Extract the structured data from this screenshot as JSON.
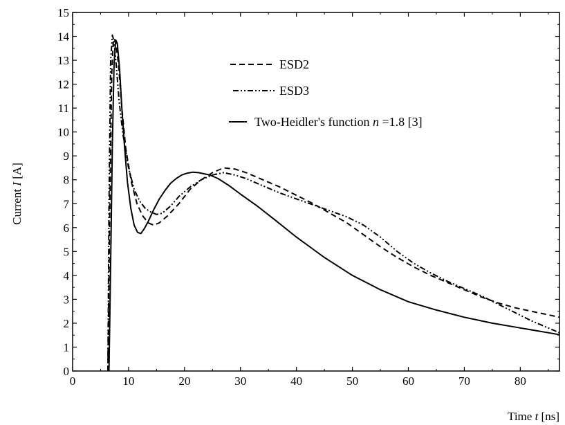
{
  "chart_data": {
    "type": "line",
    "xlabel": {
      "prefix": "Time ",
      "var": "t",
      "suffix": " [ns]"
    },
    "ylabel": {
      "prefix": "Current ",
      "var": "I",
      "suffix": " [A]"
    },
    "xlim": [
      0,
      87
    ],
    "ylim": [
      0,
      15
    ],
    "x_ticks": [
      0,
      10,
      20,
      30,
      40,
      50,
      60,
      70,
      80
    ],
    "y_ticks": [
      0,
      1,
      2,
      3,
      4,
      5,
      6,
      7,
      8,
      9,
      10,
      11,
      12,
      13,
      14,
      15
    ],
    "grid": false,
    "legend_position": "top-right",
    "series": [
      {
        "name": "ESD2",
        "style": "dashed",
        "x": [
          6.3,
          6.6,
          7.0,
          7.3,
          7.7,
          8.2,
          8.8,
          9.5,
          10.5,
          11.5,
          12.5,
          13.5,
          14.5,
          15.5,
          17,
          19,
          21,
          23,
          25,
          27,
          29,
          31,
          34,
          37,
          40,
          43,
          46,
          49,
          52,
          55,
          58,
          61,
          64,
          67,
          70,
          73,
          76,
          79,
          82,
          85,
          87
        ],
        "y": [
          0,
          6.0,
          12.5,
          13.9,
          13.8,
          12.8,
          11.0,
          9.3,
          7.9,
          7.0,
          6.5,
          6.2,
          6.1,
          6.2,
          6.5,
          7.0,
          7.6,
          8.0,
          8.3,
          8.5,
          8.45,
          8.3,
          8.0,
          7.7,
          7.35,
          7.0,
          6.6,
          6.2,
          5.7,
          5.2,
          4.75,
          4.35,
          4.0,
          3.7,
          3.4,
          3.1,
          2.85,
          2.65,
          2.5,
          2.35,
          2.25
        ]
      },
      {
        "name": "ESD3",
        "style": "dash-dot-dot",
        "x": [
          6.3,
          6.5,
          6.8,
          7.1,
          7.4,
          7.8,
          8.3,
          9.0,
          10.0,
          11.0,
          12.0,
          13.0,
          14.0,
          15.0,
          16.0,
          17.5,
          19,
          21,
          23,
          25,
          27,
          29,
          31,
          34,
          37,
          40,
          43,
          46,
          49,
          52,
          55,
          58,
          61,
          64,
          67,
          70,
          73,
          76,
          79,
          82,
          85,
          87
        ],
        "y": [
          0,
          7.0,
          13.0,
          14.05,
          13.8,
          12.8,
          11.3,
          9.9,
          8.5,
          7.6,
          7.1,
          6.8,
          6.65,
          6.55,
          6.6,
          6.9,
          7.3,
          7.7,
          8.0,
          8.2,
          8.3,
          8.2,
          8.05,
          7.75,
          7.45,
          7.2,
          6.95,
          6.7,
          6.45,
          6.1,
          5.6,
          5.0,
          4.5,
          4.1,
          3.75,
          3.45,
          3.15,
          2.8,
          2.45,
          2.1,
          1.8,
          1.6
        ]
      },
      {
        "name": "Two-Heidler's function n =1.8 [3]",
        "style": "solid",
        "x": [
          6.5,
          6.8,
          7.1,
          7.4,
          7.7,
          8.0,
          8.4,
          8.8,
          9.3,
          9.8,
          10.4,
          11.0,
          11.6,
          12.2,
          12.8,
          13.5,
          14.5,
          15.5,
          16.5,
          17.5,
          18.5,
          19.5,
          20.5,
          21.5,
          22.5,
          23.5,
          24.5,
          26,
          28,
          30,
          33,
          36,
          40,
          45,
          50,
          55,
          60,
          65,
          70,
          75,
          80,
          85,
          87
        ],
        "y": [
          0,
          4.5,
          9.5,
          12.8,
          13.85,
          13.7,
          12.6,
          11.0,
          9.3,
          7.9,
          6.8,
          6.1,
          5.8,
          5.75,
          5.95,
          6.25,
          6.75,
          7.2,
          7.55,
          7.85,
          8.05,
          8.2,
          8.28,
          8.32,
          8.3,
          8.25,
          8.2,
          8.05,
          7.75,
          7.4,
          6.9,
          6.35,
          5.6,
          4.75,
          4.0,
          3.4,
          2.9,
          2.55,
          2.25,
          2.0,
          1.8,
          1.6,
          1.52
        ]
      }
    ],
    "legend": [
      {
        "key": "ESD2",
        "label": "ESD2"
      },
      {
        "key": "ESD3",
        "label": "ESD3"
      },
      {
        "key": "heidler",
        "prefix": "Two-Heidler's function ",
        "var": "n",
        "suffix": " =1.8 [3]"
      }
    ]
  }
}
